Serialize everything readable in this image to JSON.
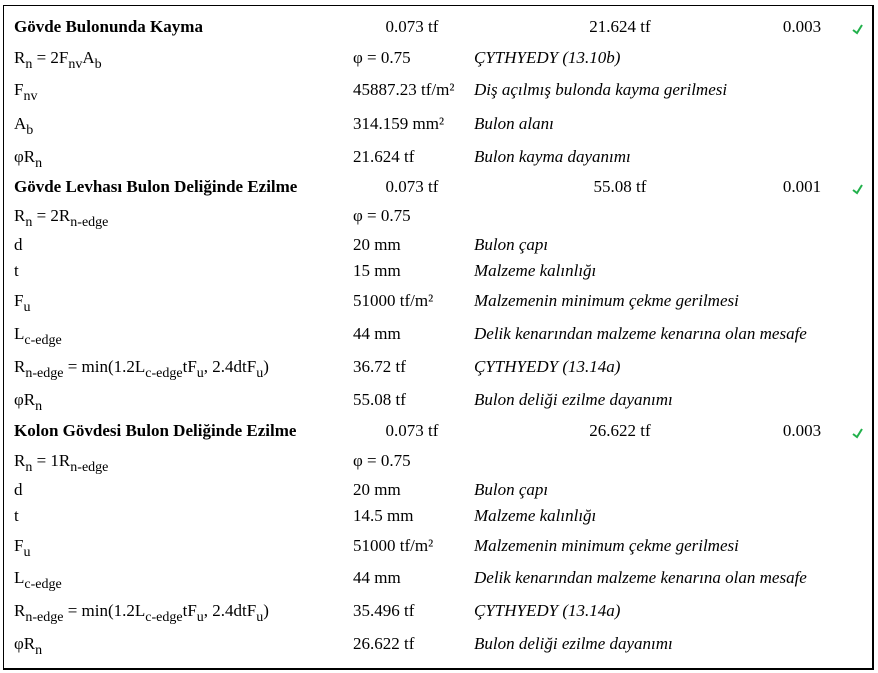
{
  "colors": {
    "check": "#22b14c"
  },
  "check_icon": "checkmark-icon",
  "sections": [
    {
      "title": "Gövde Bulonunda Kayma",
      "demand": "0.073 tf",
      "capacity": "21.624 tf",
      "ratio": "0.003",
      "rows": [
        {
          "label": [
            [
              "R",
              ""
            ],
            [
              "n",
              "s"
            ],
            [
              " = 2F",
              ""
            ],
            [
              "nv",
              "s"
            ],
            [
              "A",
              ""
            ],
            [
              "b",
              "s"
            ]
          ],
          "value": "φ = 0.75",
          "desc": "ÇYTHYEDY (13.10b)"
        },
        {
          "label": [
            [
              "F",
              ""
            ],
            [
              "nv",
              "s"
            ]
          ],
          "value": "45887.23 tf/m²",
          "desc": "Diş açılmış bulonda kayma gerilmesi"
        },
        {
          "label": [
            [
              "A",
              ""
            ],
            [
              "b",
              "s"
            ]
          ],
          "value": "314.159 mm²",
          "desc": "Bulon alanı"
        },
        {
          "label": [
            [
              "φR",
              ""
            ],
            [
              "n",
              "s"
            ]
          ],
          "value": "21.624 tf",
          "desc": "Bulon kayma dayanımı"
        }
      ]
    },
    {
      "title": "Gövde Levhası Bulon Deliğinde Ezilme",
      "demand": "0.073 tf",
      "capacity": "55.08 tf",
      "ratio": "0.001",
      "rows": [
        {
          "label": [
            [
              "R",
              ""
            ],
            [
              "n",
              "s"
            ],
            [
              " = 2R",
              ""
            ],
            [
              "n-edge",
              "s"
            ]
          ],
          "value": "φ = 0.75",
          "desc": ""
        },
        {
          "label": [
            [
              "d",
              ""
            ]
          ],
          "value": "20 mm",
          "desc": "Bulon çapı"
        },
        {
          "label": [
            [
              "t",
              ""
            ]
          ],
          "value": "15 mm",
          "desc": "Malzeme kalınlığı"
        },
        {
          "label": [
            [
              "F",
              ""
            ],
            [
              "u",
              "s"
            ]
          ],
          "value": "51000 tf/m²",
          "desc": "Malzemenin minimum çekme gerilmesi"
        },
        {
          "label": [
            [
              "L",
              ""
            ],
            [
              "c-edge",
              "s"
            ]
          ],
          "value": "44 mm",
          "desc": "Delik kenarından malzeme kenarına olan mesafe"
        },
        {
          "label": [
            [
              "R",
              ""
            ],
            [
              "n-edge",
              "s"
            ],
            [
              " = min(1.2L",
              ""
            ],
            [
              "c-edge",
              "s"
            ],
            [
              "tF",
              ""
            ],
            [
              "u",
              "s"
            ],
            [
              ", 2.4dtF",
              ""
            ],
            [
              "u",
              "s"
            ],
            [
              ")",
              ""
            ]
          ],
          "value": "36.72 tf",
          "desc": "ÇYTHYEDY (13.14a)"
        },
        {
          "label": [
            [
              "φR",
              ""
            ],
            [
              "n",
              "s"
            ]
          ],
          "value": "55.08 tf",
          "desc": "Bulon deliği ezilme dayanımı"
        }
      ]
    },
    {
      "title": "Kolon Gövdesi Bulon Deliğinde Ezilme",
      "demand": "0.073 tf",
      "capacity": "26.622 tf",
      "ratio": "0.003",
      "rows": [
        {
          "label": [
            [
              "R",
              ""
            ],
            [
              "n",
              "s"
            ],
            [
              " = 1R",
              ""
            ],
            [
              "n-edge",
              "s"
            ]
          ],
          "value": "φ = 0.75",
          "desc": ""
        },
        {
          "label": [
            [
              "d",
              ""
            ]
          ],
          "value": "20 mm",
          "desc": "Bulon çapı"
        },
        {
          "label": [
            [
              "t",
              ""
            ]
          ],
          "value": "14.5 mm",
          "desc": "Malzeme kalınlığı"
        },
        {
          "label": [
            [
              "F",
              ""
            ],
            [
              "u",
              "s"
            ]
          ],
          "value": "51000 tf/m²",
          "desc": "Malzemenin minimum çekme gerilmesi"
        },
        {
          "label": [
            [
              "L",
              ""
            ],
            [
              "c-edge",
              "s"
            ]
          ],
          "value": "44 mm",
          "desc": "Delik kenarından malzeme kenarına olan mesafe"
        },
        {
          "label": [
            [
              "R",
              ""
            ],
            [
              "n-edge",
              "s"
            ],
            [
              " = min(1.2L",
              ""
            ],
            [
              "c-edge",
              "s"
            ],
            [
              "tF",
              ""
            ],
            [
              "u",
              "s"
            ],
            [
              ", 2.4dtF",
              ""
            ],
            [
              "u",
              "s"
            ],
            [
              ")",
              ""
            ]
          ],
          "value": "35.496 tf",
          "desc": "ÇYTHYEDY (13.14a)"
        },
        {
          "label": [
            [
              "φR",
              ""
            ],
            [
              "n",
              "s"
            ]
          ],
          "value": "26.622 tf",
          "desc": "Bulon deliği ezilme dayanımı"
        }
      ]
    }
  ]
}
